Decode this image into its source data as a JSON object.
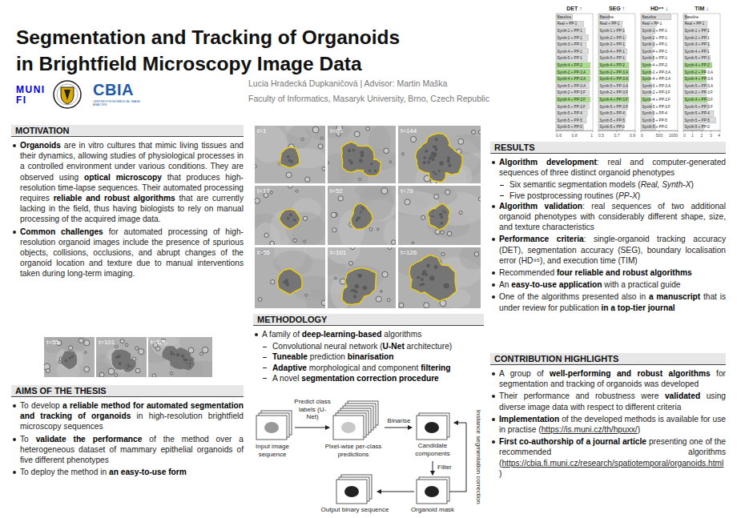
{
  "chart_data": [
    {
      "type": "bar",
      "title": "DET ↑",
      "orientation": "horizontal",
      "grid": false,
      "categories": [
        "Baseline",
        "Real + PP-1",
        "Synth-1 + PP-1",
        "Synth-2 + PP-1",
        "Synth-3 + PP-1",
        "Synth-4 + PP-1",
        "Synth-5 + PP-1",
        "Synth-4 + PP-2",
        "Synth-2 + PP-3.A",
        "Synth-4 + PP-3.A",
        "Synth-5 + PP-3.A",
        "Synth-2 + PP-3.F",
        "Synth-4 + PP-3.F",
        "Synth-5 + PP-3.F",
        "Synth-5 + PP-4",
        "Synth-5 + PP-5",
        "Synth-5 + PP-0"
      ],
      "values": [
        0.78,
        0.9,
        0.92,
        0.95,
        0.93,
        0.95,
        0.94,
        0.97,
        0.97,
        0.97,
        0.96,
        0.96,
        0.97,
        0.96,
        0.94,
        0.93,
        0.9
      ],
      "colors": [
        "#dcdcdc",
        "#dcdcdc",
        "#dcdcdc",
        "#dcdcdc",
        "#dcdcdc",
        "#dcdcdc",
        "#dcdcdc",
        "#a8dc8a",
        "#a8dc8a",
        "#a8dc8a",
        "#dcdcdc",
        "#dcdcdc",
        "#a8dc8a",
        "#dcdcdc",
        "#dcdcdc",
        "#dcdcdc",
        "#dcdcdc"
      ],
      "xlim": [
        0.6,
        1
      ],
      "xticks": [
        0.6,
        0.8,
        1
      ]
    },
    {
      "type": "bar",
      "title": "SEG ↑",
      "orientation": "horizontal",
      "grid": false,
      "categories": [
        "Baseline",
        "Real + PP-1",
        "Synth-1 + PP-1",
        "Synth-2 + PP-1",
        "Synth-3 + PP-1",
        "Synth-4 + PP-1",
        "Synth-5 + PP-1",
        "Synth-4 + PP-2",
        "Synth-2 + PP-3.A",
        "Synth-4 + PP-3.A",
        "Synth-5 + PP-3.A",
        "Synth-2 + PP-3.F",
        "Synth-4 + PP-3.F",
        "Synth-5 + PP-3.F",
        "Synth-5 + PP-4",
        "Synth-5 + PP-5",
        "Synth-5 + PP-0"
      ],
      "values": [
        0.62,
        0.76,
        0.78,
        0.8,
        0.79,
        0.81,
        0.8,
        0.83,
        0.83,
        0.83,
        0.82,
        0.82,
        0.83,
        0.82,
        0.8,
        0.79,
        0.77
      ],
      "colors": [
        "#dcdcdc",
        "#dcdcdc",
        "#dcdcdc",
        "#dcdcdc",
        "#dcdcdc",
        "#dcdcdc",
        "#dcdcdc",
        "#a8dc8a",
        "#a8dc8a",
        "#a8dc8a",
        "#dcdcdc",
        "#dcdcdc",
        "#a8dc8a",
        "#dcdcdc",
        "#dcdcdc",
        "#dcdcdc",
        "#dcdcdc"
      ],
      "xlim": [
        0.5,
        0.9
      ],
      "xticks": [
        0.5,
        0.7,
        0.9
      ]
    },
    {
      "type": "bar",
      "title": "HD⁹⁵ ↓",
      "orientation": "horizontal",
      "grid": false,
      "categories": [
        "Baseline",
        "Real + PP-1",
        "Synth-1 + PP-1",
        "Synth-2 + PP-1",
        "Synth-3 + PP-1",
        "Synth-4 + PP-1",
        "Synth-5 + PP-1",
        "Synth-4 + PP-2",
        "Synth-2 + PP-3.A",
        "Synth-4 + PP-3.A",
        "Synth-5 + PP-3.A",
        "Synth-2 + PP-3.F",
        "Synth-4 + PP-3.F",
        "Synth-5 + PP-3.F",
        "Synth-5 + PP-4",
        "Synth-5 + PP-5",
        "Synth-5 + PP-0"
      ],
      "values": [
        820,
        420,
        390,
        330,
        360,
        310,
        340,
        260,
        270,
        250,
        290,
        280,
        250,
        300,
        340,
        360,
        400
      ],
      "colors": [
        "#dcdcdc",
        "#dcdcdc",
        "#dcdcdc",
        "#dcdcdc",
        "#dcdcdc",
        "#dcdcdc",
        "#dcdcdc",
        "#a8dc8a",
        "#a8dc8a",
        "#a8dc8a",
        "#dcdcdc",
        "#dcdcdc",
        "#a8dc8a",
        "#dcdcdc",
        "#dcdcdc",
        "#dcdcdc",
        "#dcdcdc"
      ],
      "xlim": [
        0,
        1000
      ],
      "xticks": [
        0,
        500,
        1000
      ]
    },
    {
      "type": "bar",
      "title": "TIM ↓",
      "orientation": "horizontal",
      "grid": false,
      "categories": [
        "Baseline",
        "Real + PP-1",
        "Synth-1 + PP-1",
        "Synth-2 + PP-1",
        "Synth-3 + PP-1",
        "Synth-4 + PP-1",
        "Synth-5 + PP-1",
        "Synth-4 + PP-2",
        "Synth-2 + PP-3.A",
        "Synth-4 + PP-3.A",
        "Synth-5 + PP-3.A",
        "Synth-2 + PP-3.F",
        "Synth-4 + PP-3.F",
        "Synth-5 + PP-3.F",
        "Synth-5 + PP-4",
        "Synth-5 + PP-5",
        "Synth-5 + PP-0"
      ],
      "values": [
        0.4,
        2.6,
        2.7,
        2.6,
        2.8,
        2.7,
        2.9,
        3.1,
        2.4,
        2.5,
        2.6,
        2.5,
        2.6,
        2.7,
        3.3,
        3.5,
        2.2
      ],
      "colors": [
        "#dcdcdc",
        "#dcdcdc",
        "#dcdcdc",
        "#dcdcdc",
        "#dcdcdc",
        "#dcdcdc",
        "#dcdcdc",
        "#a8dc8a",
        "#a8dc8a",
        "#a8dc8a",
        "#dcdcdc",
        "#dcdcdc",
        "#a8dc8a",
        "#dcdcdc",
        "#dcdcdc",
        "#dcdcdc",
        "#dcdcdc"
      ],
      "xlim": [
        0,
        4
      ],
      "xticks": [
        0,
        1,
        2,
        3,
        4
      ]
    }
  ],
  "header": {
    "title": [
      "Segmentation and Tracking of Organoids",
      "in Brightfield Microscopy Image Data"
    ],
    "logos": {
      "muni": [
        "MUNI",
        "FI"
      ],
      "cbia": "CBIA",
      "cbia_subtitle": "CENTRE FOR BIOMEDICAL IMAGE ANALYSIS"
    },
    "authors": "Lucia Hradecká Dupkaničová | Advisor: Martin Maška",
    "affiliation": "Faculty of Informatics, Masaryk University, Brno, Czech Republic"
  },
  "sections": {
    "motivation": {
      "heading": "MOTIVATION",
      "bullets": [
        {
          "runs": [
            {
              "bold": "Organoids"
            },
            " are in vitro cultures that mimic living tissues and their dynamics, allowing studies of physiological processes in a controlled environment under various conditions. They are observed using ",
            {
              "bold": "optical microscopy"
            },
            " that produces high-resolution time-lapse sequences. Their automated processing requires ",
            {
              "bold": "reliable and robust algorithms"
            },
            " that are currently lacking in the field, thus having biologists to rely on manual processing of the acquired image data."
          ]
        },
        {
          "runs": [
            {
              "bold": "Common challenges"
            },
            " for automated processing of high-resolution organoid images include the presence of spurious objects, collisions, occlusions, and abrupt changes of the organoid location and texture due to manual interventions taken during long-term imaging."
          ]
        }
      ],
      "image_labels": [
        "t=55",
        "t=101",
        "t=126"
      ]
    },
    "aims": {
      "heading": "AIMS OF THE THESIS",
      "bullets": [
        {
          "runs": [
            "To develop ",
            {
              "bold": "a reliable method for automated segmentation and tracking of organoids"
            },
            " in high-resolution brightfield microscopy sequences"
          ]
        },
        {
          "runs": [
            "To ",
            {
              "bold": "validate the performance"
            },
            " of the method over a heterogeneous dataset of mammary epithelial organoids of five different phenotypes"
          ]
        },
        {
          "runs": [
            "To deploy the method in ",
            {
              "bold": "an easy-to-use form"
            }
          ]
        }
      ]
    },
    "examples": {
      "image_labels": [
        [
          "t=1",
          "t=80",
          "t=144"
        ],
        [
          "t=17",
          "t=52",
          "t=79"
        ],
        [
          "t=55",
          "t=101",
          "t=126"
        ]
      ]
    },
    "methodology": {
      "heading": "METHODOLOGY",
      "bullets": [
        {
          "runs": [
            "A family of ",
            {
              "bold": "deep-learning-based"
            },
            " algorithms"
          ],
          "sub": [
            [
              "Convolutional neural network (",
              {
                "bold": "U-Net"
              },
              " architecture)"
            ],
            [
              {
                "bold": "Tuneable"
              },
              " prediction ",
              {
                "bold": "binarisation"
              }
            ],
            [
              {
                "bold": "Adaptive"
              },
              " morphological and component ",
              {
                "bold": "filtering"
              }
            ],
            [
              "A novel ",
              {
                "bold": "segmentation correction procedure"
              }
            ]
          ]
        }
      ],
      "flowchart": {
        "nodes": {
          "input": "Input image sequence",
          "predictions": "Pixel-wise per-class predictions",
          "candidates": "Candidate components",
          "mask": "Organoid mask",
          "output": "Output binary sequence"
        },
        "edges": {
          "predict": "Predict class labels (U-Net)",
          "binarise": "Binarise",
          "filter": "Filter",
          "correction": "Instance segmentation correction"
        }
      }
    },
    "results": {
      "heading": "RESULTS",
      "bullets": [
        {
          "runs": [
            {
              "bold": "Algorithm development"
            },
            ": real and computer-generated sequences of three distinct organoid phenotypes"
          ],
          "sub": [
            [
              "Six semantic segmentation models (",
              {
                "italic": "Real, Synth-X"
              },
              ")"
            ],
            [
              "Five postprocessing routines (",
              {
                "italic": "PP-X"
              },
              ")"
            ]
          ]
        },
        {
          "runs": [
            {
              "bold": "Algorithm validation"
            },
            ": real sequences of two additional organoid phenotypes with considerably different shape, size, and texture characteristics"
          ]
        },
        {
          "runs": [
            {
              "bold": "Performance criteria"
            },
            ": single-organoid tracking accuracy (DET), segmentation accuracy (SEG), boundary localisation error (HD⁹⁵), and execution time (TIM)"
          ]
        },
        {
          "runs": [
            "Recommended ",
            {
              "bold": "four reliable and robust algorithms"
            }
          ]
        },
        {
          "runs": [
            "An ",
            {
              "bold": "easy-to-use application"
            },
            " with a practical guide"
          ]
        },
        {
          "runs": [
            "One of the algorithms presented also in ",
            {
              "bold": "a manuscript"
            },
            " that is under review for publication ",
            {
              "bold": "in a top-tier journal"
            }
          ]
        }
      ]
    },
    "contributions": {
      "heading": "CONTRIBUTION HIGHLIGHTS",
      "bullets": [
        {
          "runs": [
            "A group of ",
            {
              "bold": "well-performing and robust algorithms"
            },
            " for segmentation and tracking of organoids was developed"
          ]
        },
        {
          "runs": [
            "Their performance and robustness were ",
            {
              "bold": "validated"
            },
            " using diverse image data with respect to different criteria"
          ]
        },
        {
          "runs": [
            {
              "bold": "Implementation"
            },
            " of the developed methods is available for use in practise (",
            {
              "link": "https://is.muni.cz/th/hpuxx/"
            },
            ")"
          ]
        },
        {
          "runs": [
            {
              "bold": "First co-authorship of a journal article"
            },
            " presenting one of the recommended algorithms (",
            {
              "link": "https://cbia.fi.muni.cz/research/spatiotemporal/organoids.html"
            },
            ")"
          ]
        }
      ]
    }
  }
}
